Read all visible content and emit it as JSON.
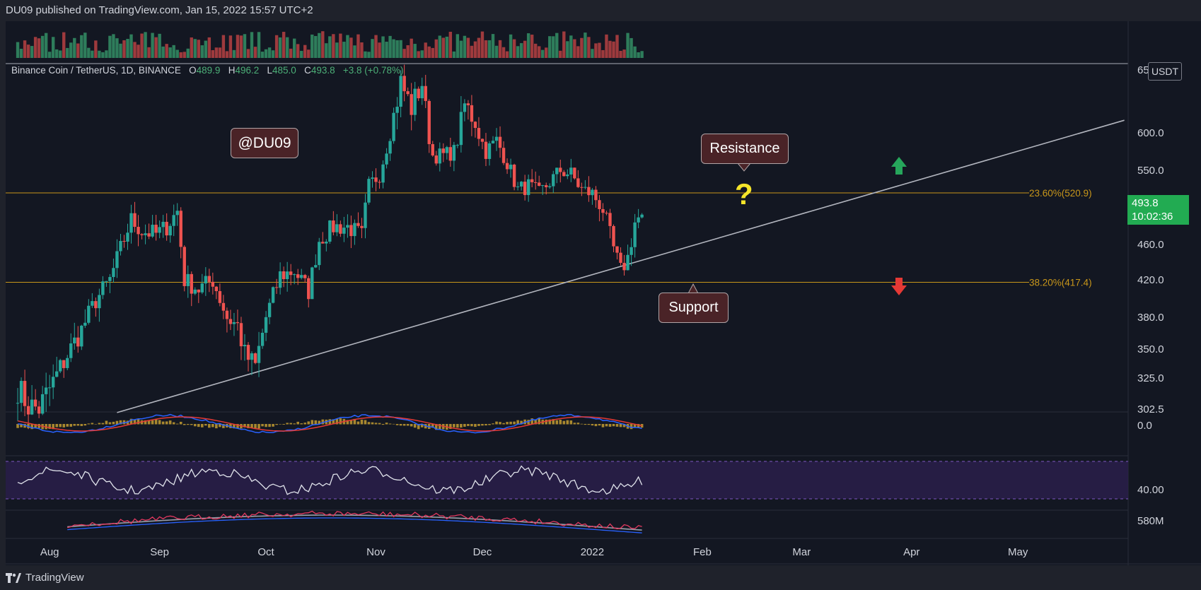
{
  "header": {
    "publisher_line": "DU09 published on TradingView.com, Jan 15, 2022 15:57 UTC+2"
  },
  "footer": {
    "brand": "TradingView"
  },
  "legend": {
    "symbol": "Binance Coin / TetherUS, 1D, BINANCE",
    "open_label": "O",
    "open": "489.9",
    "high_label": "H",
    "high": "496.2",
    "low_label": "L",
    "low": "485.0",
    "close_label": "C",
    "close": "493.8",
    "change": "+3.8 (+0.78%)"
  },
  "currency_badge": "USDT",
  "last_price": {
    "price": "493.8",
    "countdown": "10:02:36"
  },
  "annotations": {
    "watermark": "@DU09",
    "resistance": "Resistance",
    "support": "Support",
    "question": "?"
  },
  "chart_data": {
    "type": "candlestick",
    "title": "",
    "ylabel": "",
    "ylim": [
      295,
      645
    ],
    "y_ticks": [
      "302.5",
      "325.0",
      "350.0",
      "380.0",
      "420.0",
      "460.0",
      "500.0",
      "550.0",
      "600.0",
      "650.0"
    ],
    "x_ticks": [
      "Aug",
      "Sep",
      "Oct",
      "Nov",
      "Dec",
      "2022",
      "Feb",
      "Mar",
      "Apr",
      "May"
    ],
    "fib_levels": [
      {
        "label": "23.60%(520.9)",
        "value": 520.9
      },
      {
        "label": "38.20%(417.4)",
        "value": 417.4
      }
    ],
    "trendline": {
      "from": {
        "x": "2021-08-20",
        "y": 300
      },
      "to": {
        "x": "2022-05-31",
        "y": 610
      }
    },
    "close_path": [
      [
        "2021-07-23",
        318
      ],
      [
        "2021-07-26",
        305
      ],
      [
        "2021-07-29",
        303
      ],
      [
        "2021-08-02",
        322
      ],
      [
        "2021-08-06",
        345
      ],
      [
        "2021-08-10",
        368
      ],
      [
        "2021-08-14",
        398
      ],
      [
        "2021-08-18",
        420
      ],
      [
        "2021-08-21",
        455
      ],
      [
        "2021-08-24",
        488
      ],
      [
        "2021-08-27",
        475
      ],
      [
        "2021-08-31",
        472
      ],
      [
        "2021-09-03",
        480
      ],
      [
        "2021-09-06",
        498
      ],
      [
        "2021-09-08",
        420
      ],
      [
        "2021-09-12",
        410
      ],
      [
        "2021-09-16",
        420
      ],
      [
        "2021-09-20",
        380
      ],
      [
        "2021-09-23",
        372
      ],
      [
        "2021-09-25",
        345
      ],
      [
        "2021-09-28",
        335
      ],
      [
        "2021-10-01",
        380
      ],
      [
        "2021-10-05",
        425
      ],
      [
        "2021-10-09",
        430
      ],
      [
        "2021-10-13",
        408
      ],
      [
        "2021-10-16",
        465
      ],
      [
        "2021-10-20",
        480
      ],
      [
        "2021-10-24",
        480
      ],
      [
        "2021-10-28",
        470
      ],
      [
        "2021-10-30",
        530
      ],
      [
        "2021-11-02",
        545
      ],
      [
        "2021-11-05",
        600
      ],
      [
        "2021-11-08",
        640
      ],
      [
        "2021-11-11",
        620
      ],
      [
        "2021-11-14",
        640
      ],
      [
        "2021-11-17",
        570
      ],
      [
        "2021-11-20",
        570
      ],
      [
        "2021-11-23",
        575
      ],
      [
        "2021-11-26",
        622
      ],
      [
        "2021-11-29",
        610
      ],
      [
        "2021-12-02",
        575
      ],
      [
        "2021-12-05",
        590
      ],
      [
        "2021-12-08",
        560
      ],
      [
        "2021-12-11",
        525
      ],
      [
        "2021-12-14",
        530
      ],
      [
        "2021-12-17",
        520
      ],
      [
        "2021-12-20",
        535
      ],
      [
        "2021-12-23",
        550
      ],
      [
        "2021-12-26",
        545
      ],
      [
        "2021-12-29",
        525
      ],
      [
        "2022-01-01",
        520
      ],
      [
        "2022-01-04",
        500
      ],
      [
        "2022-01-07",
        455
      ],
      [
        "2022-01-09",
        430
      ],
      [
        "2022-01-11",
        445
      ],
      [
        "2022-01-13",
        485
      ],
      [
        "2022-01-15",
        493.8
      ]
    ],
    "last_close": 493.8,
    "indicators": {
      "macd_zero_label": "0.0",
      "rsi_label": "40.00",
      "volume_ma_label": "580M"
    }
  }
}
